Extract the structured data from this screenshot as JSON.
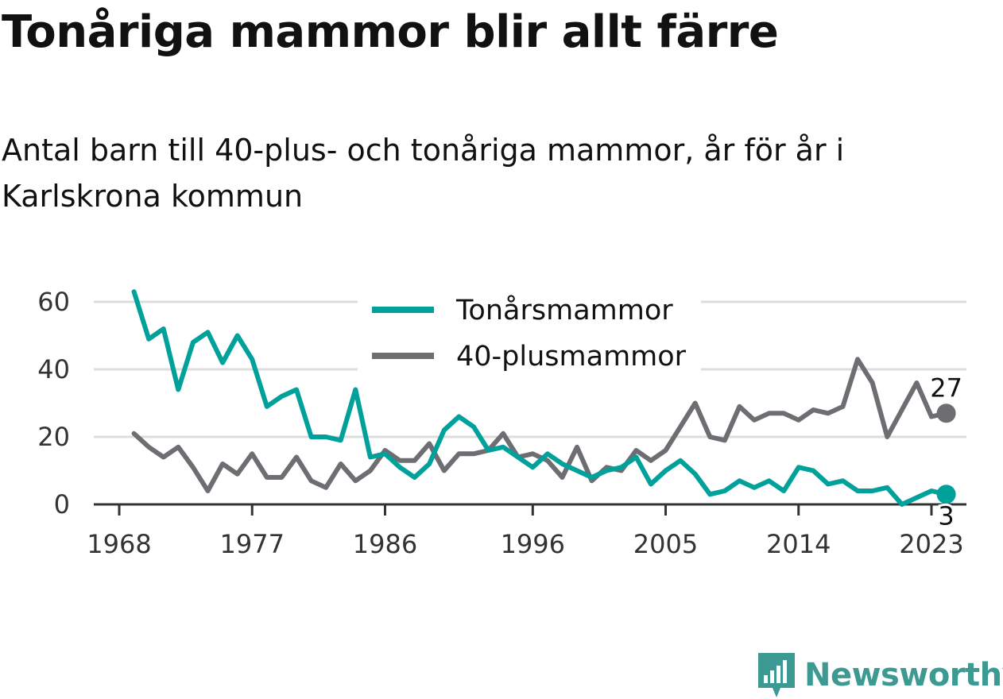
{
  "title": "Tonåriga mammor blir allt färre",
  "subtitle": "Antal barn till 40-plus- och tonåriga mammor, år för år i Karlskrona kommun",
  "brand": "Newsworthy",
  "chart_data": {
    "type": "line",
    "title": "Tonåriga mammor blir allt färre",
    "subtitle": "Antal barn till 40-plus- och tonåriga mammor, år för år i Karlskrona kommun",
    "xlabel": "",
    "ylabel": "",
    "x": [
      1969,
      1970,
      1971,
      1972,
      1973,
      1974,
      1975,
      1976,
      1977,
      1978,
      1979,
      1980,
      1981,
      1982,
      1983,
      1984,
      1985,
      1986,
      1987,
      1988,
      1989,
      1990,
      1991,
      1992,
      1993,
      1994,
      1995,
      1996,
      1997,
      1998,
      1999,
      2000,
      2001,
      2002,
      2003,
      2004,
      2005,
      2006,
      2007,
      2008,
      2009,
      2010,
      2011,
      2012,
      2013,
      2014,
      2015,
      2016,
      2017,
      2018,
      2019,
      2020,
      2021,
      2022,
      2023,
      2024
    ],
    "xticks": [
      1968,
      1977,
      1986,
      1996,
      2005,
      2014,
      2023
    ],
    "xlim": [
      1968,
      2026
    ],
    "yticks": [
      0,
      20,
      40,
      60
    ],
    "ylim": [
      0,
      63
    ],
    "grid": true,
    "legend_position": "top-center",
    "series": [
      {
        "name": "Tonårsmammor",
        "color": "#00a19a",
        "values": [
          63,
          49,
          52,
          34,
          48,
          51,
          42,
          50,
          43,
          29,
          32,
          34,
          20,
          20,
          19,
          34,
          14,
          15,
          11,
          8,
          12,
          22,
          26,
          23,
          16,
          17,
          14,
          11,
          15,
          12,
          10,
          8,
          10,
          11,
          14,
          6,
          10,
          13,
          9,
          3,
          4,
          7,
          5,
          7,
          4,
          11,
          10,
          6,
          7,
          4,
          4,
          5,
          0,
          2,
          4,
          3
        ],
        "end_label": "3"
      },
      {
        "name": "40-plusmammor",
        "color": "#6e6d72",
        "values": [
          21,
          17,
          14,
          17,
          11,
          4,
          12,
          9,
          15,
          8,
          8,
          14,
          7,
          5,
          12,
          7,
          10,
          16,
          13,
          13,
          18,
          10,
          15,
          15,
          16,
          21,
          14,
          15,
          13,
          8,
          17,
          7,
          11,
          10,
          16,
          13,
          16,
          23,
          30,
          20,
          19,
          29,
          25,
          27,
          27,
          25,
          28,
          27,
          29,
          43,
          36,
          20,
          28,
          36,
          26,
          27
        ],
        "end_label": "27"
      }
    ]
  }
}
